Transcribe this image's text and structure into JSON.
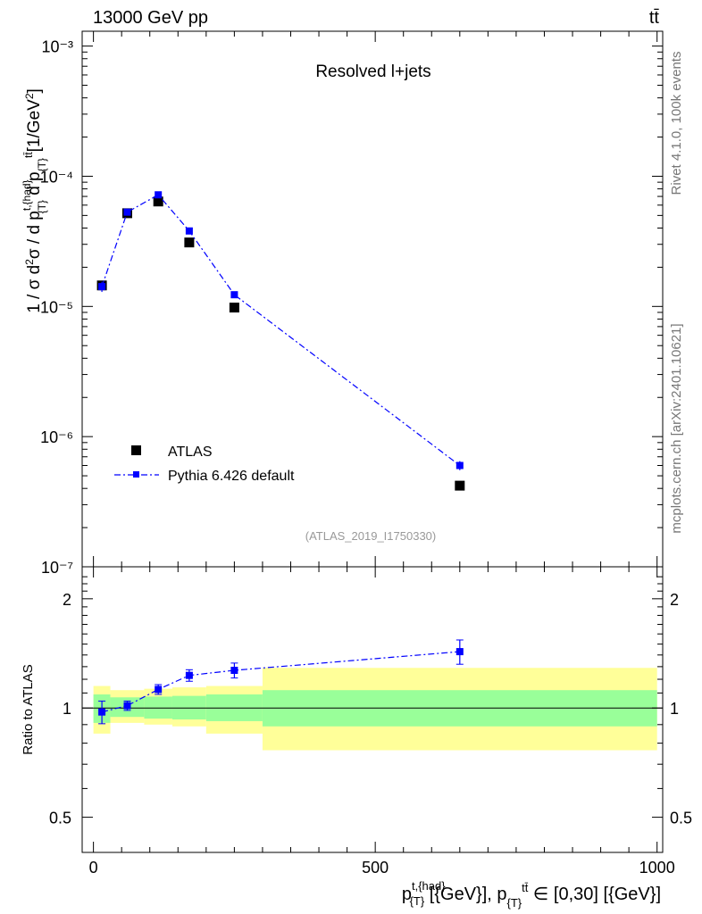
{
  "header": {
    "left": "13000 GeV pp",
    "right": "tt̄",
    "side_top": "Rivet 4.1.0,  100k events",
    "side_bottom": "mcplots.cern.ch [arXiv:2401.10621]"
  },
  "chart_data": [
    {
      "type": "scatter",
      "panel": "main",
      "title": "Resolved l+jets",
      "watermark": "(ATLAS_2019_I1750330)",
      "ylabel": "1 / σ d²σ / d p_T^{t,had} d p_T^{tt̄} [1/GeV²]",
      "yscale": "log",
      "ylim": [
        1e-07,
        0.0013
      ],
      "xlim": [
        -20,
        1010
      ],
      "ytick_labels": [
        "10⁻⁷",
        "10⁻⁶",
        "10⁻⁵",
        "10⁻⁴",
        "10⁻³"
      ],
      "series": [
        {
          "name": "ATLAS",
          "color": "#000000",
          "x": [
            15,
            60,
            115,
            170,
            250,
            650
          ],
          "y": [
            1.45e-05,
            5.2e-05,
            6.4e-05,
            3.1e-05,
            9.8e-06,
            4.2e-07
          ]
        },
        {
          "name": "Pythia 6.426 default",
          "color": "#0000ff",
          "linestyle": "dash-dot",
          "x": [
            15,
            60,
            115,
            170,
            250,
            650
          ],
          "y": [
            1.42e-05,
            5.3e-05,
            7.2e-05,
            3.8e-05,
            1.23e-05,
            6e-07
          ],
          "yerr_rel": [
            0.09,
            0.03,
            0.03,
            0.03,
            0.03,
            0.08
          ]
        }
      ]
    },
    {
      "type": "scatter",
      "panel": "ratio",
      "ylabel": "Ratio to ATLAS",
      "xlabel": "p_T^{t,{had}} [{GeV}], p_T^{tt̄} ∈ [0,30] [{GeV}]",
      "xlim": [
        -20,
        1010
      ],
      "ylim": [
        0.4,
        2.45
      ],
      "yscale": "log",
      "xtick_labels": [
        "0",
        "500",
        "1000"
      ],
      "ytick_labels": [
        "0.5",
        "1",
        "2"
      ],
      "bands": [
        {
          "x": [
            0,
            30
          ],
          "inner": [
            0.91,
            1.09
          ],
          "outer": [
            0.85,
            1.15
          ]
        },
        {
          "x": [
            30,
            90
          ],
          "inner": [
            0.945,
            1.07
          ],
          "outer": [
            0.91,
            1.12
          ]
        },
        {
          "x": [
            90,
            140
          ],
          "inner": [
            0.935,
            1.075
          ],
          "outer": [
            0.9,
            1.13
          ]
        },
        {
          "x": [
            140,
            200
          ],
          "inner": [
            0.93,
            1.08
          ],
          "outer": [
            0.89,
            1.14
          ]
        },
        {
          "x": [
            200,
            300
          ],
          "inner": [
            0.92,
            1.09
          ],
          "outer": [
            0.85,
            1.15
          ]
        },
        {
          "x": [
            300,
            1000
          ],
          "inner": [
            0.89,
            1.12
          ],
          "outer": [
            0.765,
            1.29
          ]
        }
      ],
      "band_colors": {
        "inner": "#99ff99",
        "outer": "#ffff99"
      },
      "series": [
        {
          "name": "Pythia 6.426 default",
          "color": "#0000ff",
          "x": [
            15,
            60,
            115,
            170,
            250,
            650
          ],
          "y": [
            0.975,
            1.015,
            1.125,
            1.23,
            1.27,
            1.43
          ],
          "yerr": [
            0.07,
            0.03,
            0.035,
            0.045,
            0.06,
            0.11
          ]
        }
      ]
    }
  ]
}
